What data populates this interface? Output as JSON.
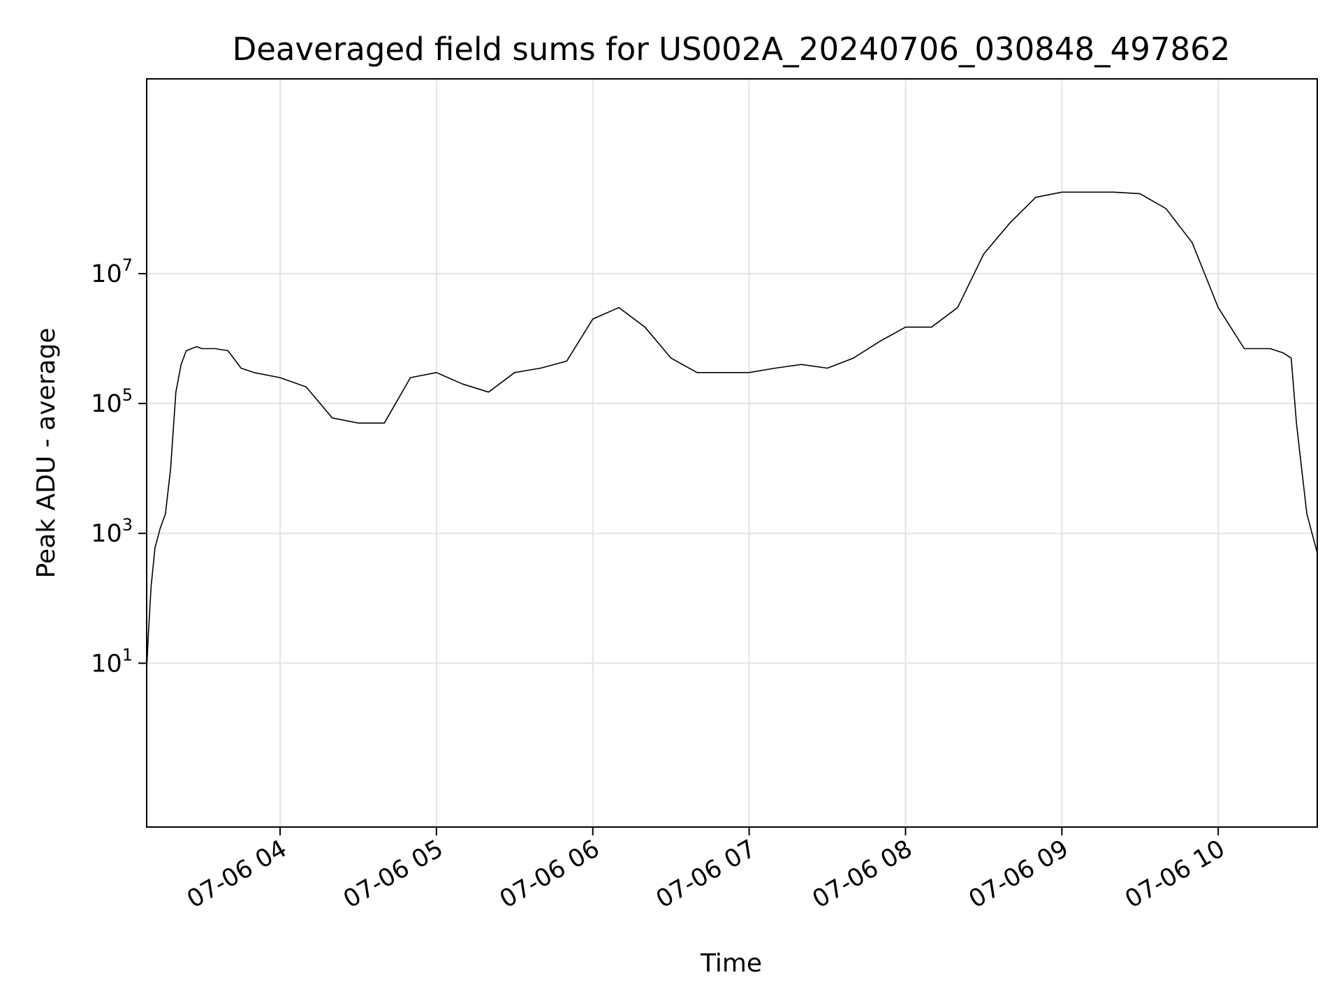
{
  "chart_data": {
    "type": "line",
    "title": "Deaveraged field sums for US002A_20240706_030848_497862",
    "xlabel": "Time",
    "ylabel": "Peak ADU - average",
    "y_scale": "log",
    "ylim": [
      0.03,
      10000000000
    ],
    "xlim": [
      "2024-07-06T03:08:48",
      "2024-07-06T10:38:00"
    ],
    "grid": true,
    "line_color": "#000000",
    "x_ticks": [
      {
        "time": "2024-07-06T04:00:00",
        "label": "07-06 04"
      },
      {
        "time": "2024-07-06T05:00:00",
        "label": "07-06 05"
      },
      {
        "time": "2024-07-06T06:00:00",
        "label": "07-06 06"
      },
      {
        "time": "2024-07-06T07:00:00",
        "label": "07-06 07"
      },
      {
        "time": "2024-07-06T08:00:00",
        "label": "07-06 08"
      },
      {
        "time": "2024-07-06T09:00:00",
        "label": "07-06 09"
      },
      {
        "time": "2024-07-06T10:00:00",
        "label": "07-06 10"
      }
    ],
    "y_ticks": [
      {
        "value": 10,
        "base": "10",
        "exp": "1"
      },
      {
        "value": 1000,
        "base": "10",
        "exp": "3"
      },
      {
        "value": 100000,
        "base": "10",
        "exp": "5"
      },
      {
        "value": 10000000,
        "base": "10",
        "exp": "7"
      }
    ],
    "series": [
      {
        "x": [
          "2024-07-06T03:08:48",
          "2024-07-06T03:09:30",
          "2024-07-06T03:10:30",
          "2024-07-06T03:12:00",
          "2024-07-06T03:14:00",
          "2024-07-06T03:16:00",
          "2024-07-06T03:18:00",
          "2024-07-06T03:20:00",
          "2024-07-06T03:22:00",
          "2024-07-06T03:24:00",
          "2024-07-06T03:26:00",
          "2024-07-06T03:28:00",
          "2024-07-06T03:30:00",
          "2024-07-06T03:35:00",
          "2024-07-06T03:40:00",
          "2024-07-06T03:45:00",
          "2024-07-06T03:50:00",
          "2024-07-06T04:00:00",
          "2024-07-06T04:10:00",
          "2024-07-06T04:20:00",
          "2024-07-06T04:30:00",
          "2024-07-06T04:40:00",
          "2024-07-06T04:50:00",
          "2024-07-06T05:00:00",
          "2024-07-06T05:10:00",
          "2024-07-06T05:20:00",
          "2024-07-06T05:30:00",
          "2024-07-06T05:40:00",
          "2024-07-06T05:50:00",
          "2024-07-06T06:00:00",
          "2024-07-06T06:10:00",
          "2024-07-06T06:20:00",
          "2024-07-06T06:30:00",
          "2024-07-06T06:40:00",
          "2024-07-06T06:50:00",
          "2024-07-06T07:00:00",
          "2024-07-06T07:10:00",
          "2024-07-06T07:20:00",
          "2024-07-06T07:30:00",
          "2024-07-06T07:40:00",
          "2024-07-06T07:50:00",
          "2024-07-06T08:00:00",
          "2024-07-06T08:10:00",
          "2024-07-06T08:20:00",
          "2024-07-06T08:30:00",
          "2024-07-06T08:40:00",
          "2024-07-06T08:50:00",
          "2024-07-06T09:00:00",
          "2024-07-06T09:10:00",
          "2024-07-06T09:20:00",
          "2024-07-06T09:30:00",
          "2024-07-06T09:40:00",
          "2024-07-06T09:50:00",
          "2024-07-06T10:00:00",
          "2024-07-06T10:10:00",
          "2024-07-06T10:20:00",
          "2024-07-06T10:25:00",
          "2024-07-06T10:28:00",
          "2024-07-06T10:30:00",
          "2024-07-06T10:32:00",
          "2024-07-06T10:34:00",
          "2024-07-06T10:36:00",
          "2024-07-06T10:38:00"
        ],
        "y": [
          8,
          30,
          150,
          600,
          1200,
          2000,
          10000,
          150000,
          400000,
          650000,
          700000,
          750000,
          700000,
          700000,
          650000,
          350000,
          300000,
          250000,
          180000,
          60000,
          50000,
          50000,
          250000,
          300000,
          200000,
          150000,
          300000,
          350000,
          450000,
          2000000,
          3000000,
          1500000,
          500000,
          300000,
          300000,
          300000,
          350000,
          400000,
          350000,
          500000,
          900000,
          1500000,
          1500000,
          3000000,
          20000000,
          60000000,
          150000000,
          180000000,
          180000000,
          180000000,
          170000000,
          100000000,
          30000000,
          3000000,
          700000,
          700000,
          600000,
          500000,
          50000,
          10000,
          2000,
          1000,
          500
        ]
      }
    ]
  }
}
